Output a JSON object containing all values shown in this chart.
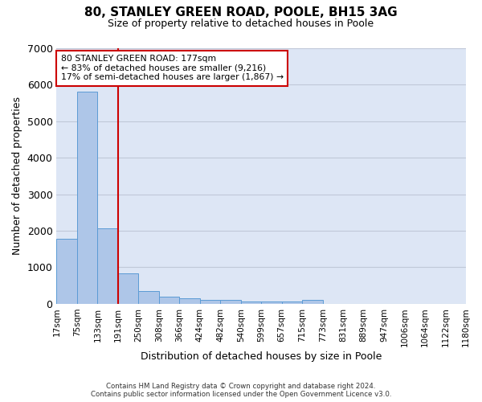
{
  "title1": "80, STANLEY GREEN ROAD, POOLE, BH15 3AG",
  "title2": "Size of property relative to detached houses in Poole",
  "xlabel": "Distribution of detached houses by size in Poole",
  "ylabel": "Number of detached properties",
  "tick_labels": [
    "17sqm",
    "75sqm",
    "133sqm",
    "191sqm",
    "250sqm",
    "308sqm",
    "366sqm",
    "424sqm",
    "482sqm",
    "540sqm",
    "599sqm",
    "657sqm",
    "715sqm",
    "773sqm",
    "831sqm",
    "889sqm",
    "947sqm",
    "1006sqm",
    "1064sqm",
    "1122sqm",
    "1180sqm"
  ],
  "counts": [
    1780,
    5800,
    2060,
    840,
    340,
    200,
    160,
    110,
    100,
    60,
    60,
    60,
    110,
    0,
    0,
    0,
    0,
    0,
    0,
    0
  ],
  "bar_color": "#aec6e8",
  "bar_edge_color": "#5b9bd5",
  "vline_color": "#cc0000",
  "vline_pos": 2.5,
  "annotation_line1": "80 STANLEY GREEN ROAD: 177sqm",
  "annotation_line2": "← 83% of detached houses are smaller (9,216)",
  "annotation_line3": "17% of semi-detached houses are larger (1,867) →",
  "annotation_box_color": "#ffffff",
  "annotation_border_color": "#cc0000",
  "footer1": "Contains HM Land Registry data © Crown copyright and database right 2024.",
  "footer2": "Contains public sector information licensed under the Open Government Licence v3.0.",
  "ylim": [
    0,
    7000
  ],
  "bg_color": "#dde6f5"
}
